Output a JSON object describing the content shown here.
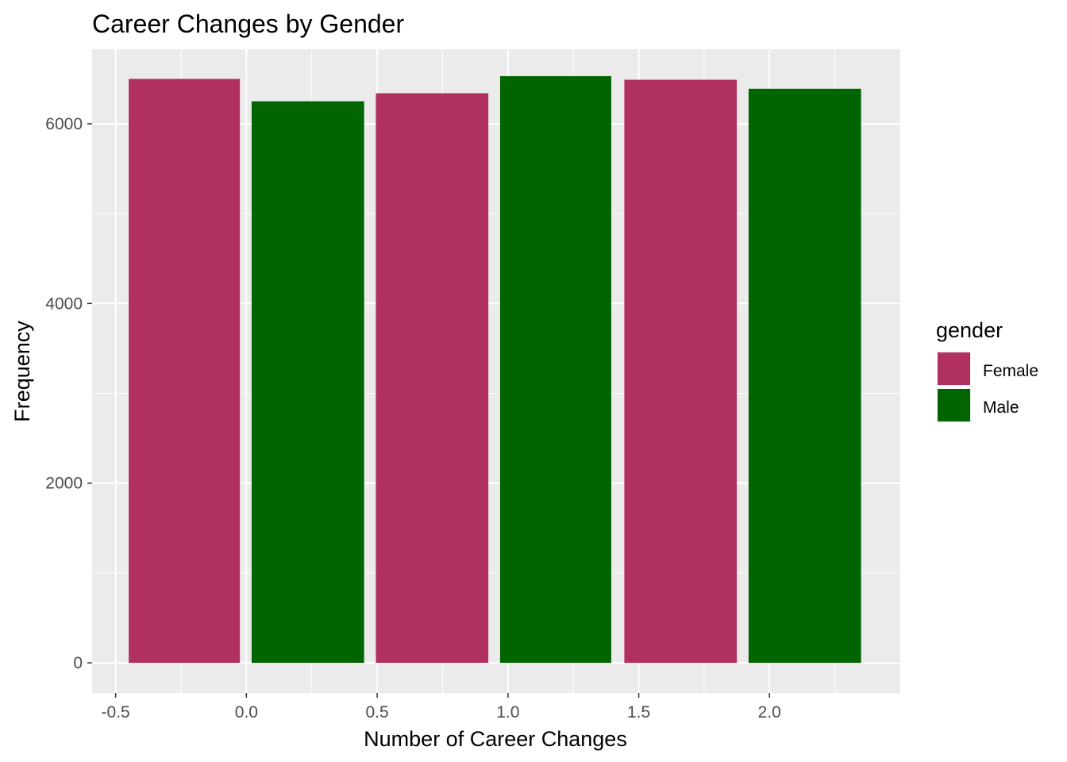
{
  "chart_data": {
    "type": "bar",
    "title": "Career Changes by Gender",
    "xlabel": "Number of Career Changes",
    "ylabel": "Frequency",
    "xlim": [
      -0.59,
      2.5
    ],
    "ylim": [
      -335,
      6830
    ],
    "xticks": [
      -0.5,
      0.0,
      0.5,
      1.0,
      1.5,
      2.0
    ],
    "xtick_labels": [
      "-0.5",
      "0.0",
      "0.5",
      "1.0",
      "1.5",
      "2.0"
    ],
    "yticks": [
      0,
      2000,
      4000,
      6000
    ],
    "ytick_labels": [
      "0",
      "2000",
      "4000",
      "6000"
    ],
    "grid": true,
    "bars": [
      {
        "x_start": -0.45,
        "x_end": -0.025,
        "value": 6500,
        "gender": "Female"
      },
      {
        "x_start": 0.02,
        "x_end": 0.45,
        "value": 6250,
        "gender": "Male"
      },
      {
        "x_start": 0.495,
        "x_end": 0.925,
        "value": 6340,
        "gender": "Female"
      },
      {
        "x_start": 0.97,
        "x_end": 1.395,
        "value": 6530,
        "gender": "Male"
      },
      {
        "x_start": 1.445,
        "x_end": 1.875,
        "value": 6490,
        "gender": "Female"
      },
      {
        "x_start": 1.92,
        "x_end": 2.35,
        "value": 6390,
        "gender": "Male"
      }
    ],
    "legend": {
      "title": "gender",
      "placement": "right",
      "entries": [
        {
          "label": "Female",
          "color": "#B03060"
        },
        {
          "label": "Male",
          "color": "#006400"
        }
      ]
    },
    "colors": {
      "panel_background": "#EBEBEB",
      "grid_line": "#FFFFFF",
      "Female": "#B03060",
      "Male": "#006400"
    }
  }
}
